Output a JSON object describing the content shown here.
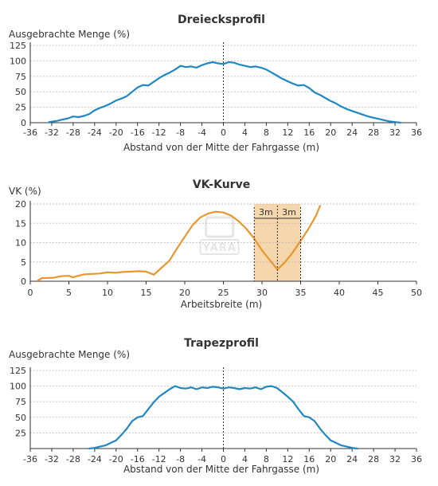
{
  "chart_data": [
    {
      "type": "line",
      "title": "Dreiecksprofil",
      "ylabel": "Ausgebrachte Menge (%)",
      "xlabel": "Abstand von der Mitte der Fahrgasse (m)",
      "xlim": [
        -36,
        36
      ],
      "ylim": [
        0,
        125
      ],
      "xticks": [
        -36,
        -32,
        -28,
        -24,
        -20,
        -16,
        -12,
        -8,
        -4,
        0,
        4,
        8,
        12,
        16,
        20,
        24,
        28,
        32,
        36
      ],
      "yticks": [
        0,
        25,
        50,
        75,
        100,
        125
      ],
      "grid": "horizontal dotted",
      "center_line_x": 0,
      "color": "#1f87c4",
      "series": [
        {
          "x": [
            -32.5,
            -31,
            -30,
            -29,
            -28,
            -27,
            -26,
            -25,
            -24,
            -23,
            -22,
            -21,
            -20,
            -19,
            -18,
            -17,
            -16,
            -15,
            -14,
            -13,
            -12,
            -11,
            -10,
            -9,
            -8,
            -7,
            -6,
            -5,
            -4,
            -3,
            -2,
            -1,
            0,
            1,
            2,
            3,
            4,
            5,
            6,
            7,
            8,
            9,
            10,
            11,
            12,
            13,
            14,
            15,
            16,
            17,
            18,
            19,
            20,
            21,
            22,
            23,
            24,
            25,
            26,
            27,
            28,
            29,
            30,
            31,
            32,
            33
          ],
          "y": [
            1,
            3,
            5,
            7,
            10,
            9,
            11,
            14,
            20,
            24,
            27,
            31,
            36,
            39,
            43,
            50,
            57,
            61,
            60,
            66,
            72,
            77,
            81,
            86,
            92,
            90,
            91,
            89,
            93,
            96,
            98,
            96,
            95,
            98,
            97,
            94,
            92,
            90,
            91,
            89,
            86,
            81,
            76,
            71,
            67,
            63,
            60,
            61,
            56,
            49,
            45,
            40,
            35,
            31,
            26,
            22,
            19,
            16,
            13,
            10,
            8,
            6,
            4,
            2,
            1,
            0
          ]
        }
      ]
    },
    {
      "type": "line",
      "title": "VK-Kurve",
      "ylabel": "VK (%)",
      "xlabel": "Arbeitsbreite (m)",
      "xlim": [
        0,
        50
      ],
      "ylim": [
        0,
        20
      ],
      "xticks": [
        0,
        5,
        10,
        15,
        20,
        25,
        30,
        35,
        40,
        45,
        50
      ],
      "yticks": [
        0,
        5,
        10,
        15,
        20
      ],
      "grid": "horizontal dotted",
      "color": "#e8962e",
      "shaded_range_x": [
        29,
        35
      ],
      "marker_x": 32,
      "annotations": [
        "3m",
        "3m"
      ],
      "watermark": "YARA",
      "series": [
        {
          "x": [
            1,
            1.5,
            3,
            4,
            5,
            5.5,
            6,
            7,
            8,
            9,
            10,
            11,
            12,
            13,
            14,
            15,
            16,
            17,
            18,
            19,
            20,
            21,
            22,
            23,
            24,
            25,
            26,
            27,
            28,
            29,
            30,
            31,
            32,
            33,
            34,
            35,
            36,
            37,
            37.5
          ],
          "y": [
            0.2,
            0.8,
            0.9,
            1.3,
            1.4,
            1.0,
            1.3,
            1.8,
            1.9,
            2.0,
            2.3,
            2.2,
            2.4,
            2.5,
            2.6,
            2.5,
            1.7,
            3.5,
            5.3,
            8.5,
            11.5,
            14.5,
            16.5,
            17.5,
            18.0,
            17.8,
            17.0,
            15.5,
            13.5,
            11.0,
            8.0,
            5.5,
            3.0,
            5.0,
            7.5,
            10.5,
            13.5,
            17.0,
            19.5
          ]
        }
      ]
    },
    {
      "type": "line",
      "title": "Trapezprofil",
      "ylabel": "Ausgebrachte Menge (%)",
      "xlabel": "Abstand von der Mitte der Fahrgasse (m)",
      "xlim": [
        -36,
        36
      ],
      "ylim": [
        0,
        125
      ],
      "xticks": [
        -36,
        -32,
        -28,
        -24,
        -20,
        -16,
        -12,
        -8,
        -4,
        0,
        4,
        8,
        12,
        16,
        20,
        24,
        28,
        32,
        36
      ],
      "yticks": [
        25,
        50,
        75,
        100,
        125
      ],
      "grid": "horizontal dotted",
      "center_line_x": 0,
      "color": "#1f87c4",
      "series": [
        {
          "x": [
            -25,
            -24,
            -23,
            -22,
            -21,
            -20,
            -19,
            -18,
            -17,
            -16,
            -15,
            -14,
            -13,
            -12,
            -11,
            -10,
            -9,
            -8,
            -7,
            -6,
            -5,
            -4,
            -3,
            -2,
            -1,
            0,
            1,
            2,
            3,
            4,
            5,
            6,
            7,
            8,
            9,
            10,
            11,
            12,
            13,
            14,
            15,
            16,
            17,
            18,
            19,
            20,
            21,
            22,
            23,
            24,
            25
          ],
          "y": [
            0,
            1,
            3,
            5,
            9,
            13,
            22,
            32,
            44,
            50,
            52,
            63,
            74,
            83,
            89,
            95,
            100,
            97,
            96,
            98,
            95,
            98,
            97,
            99,
            98,
            96,
            98,
            97,
            95,
            97,
            96,
            98,
            95,
            99,
            100,
            97,
            90,
            83,
            75,
            63,
            52,
            50,
            44,
            32,
            22,
            13,
            9,
            5,
            3,
            1,
            0
          ]
        }
      ]
    }
  ]
}
